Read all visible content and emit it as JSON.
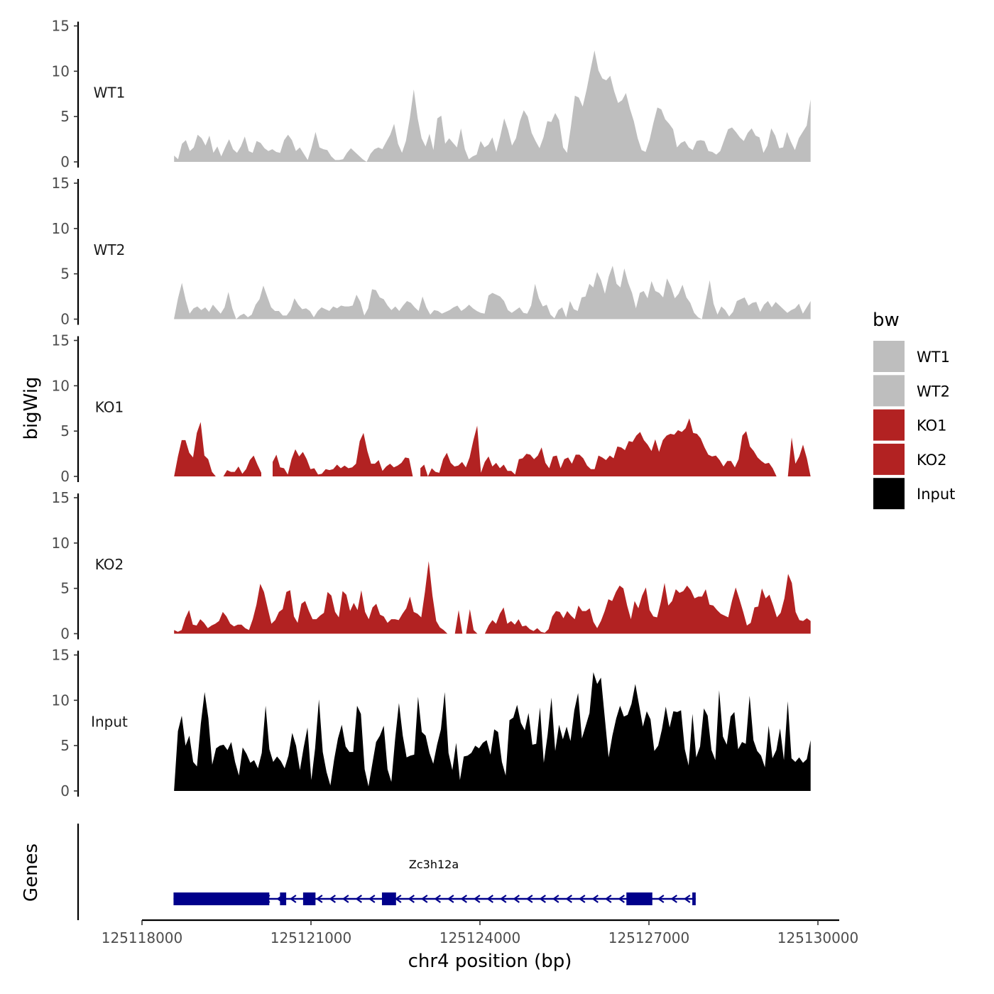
{
  "chart_data": {
    "type": "area",
    "title": "",
    "ylabel": "bigWig",
    "xlabel": "chr4 position (bp)",
    "ylim": [
      0,
      15
    ],
    "yticks": [
      0,
      5,
      10,
      15
    ],
    "xlim": [
      125118000,
      125130000
    ],
    "xticks": [
      125118000,
      125121000,
      125124000,
      125127000,
      125130000
    ],
    "xtick_labels": [
      "125118000",
      "125121000",
      "125124000",
      "125127000",
      "125130000"
    ],
    "x_start": 125118570,
    "x_end": 125129870,
    "legend": {
      "title": "bw",
      "position": "right",
      "entries": [
        {
          "name": "WT1",
          "color": "#bebebe"
        },
        {
          "name": "WT2",
          "color": "#bebebe"
        },
        {
          "name": "KO1",
          "color": "#b22222"
        },
        {
          "name": "KO2",
          "color": "#b22222"
        },
        {
          "name": "Input",
          "color": "#000000"
        }
      ]
    },
    "series": [
      {
        "name": "WT1",
        "color": "#bebebe",
        "values": [
          0.7,
          0.3,
          2.0,
          2.4,
          1.2,
          1.6,
          3.0,
          2.6,
          1.8,
          2.9,
          1.0,
          1.7,
          0.6,
          1.6,
          2.5,
          1.4,
          1.0,
          1.7,
          2.8,
          1.2,
          1.0,
          2.3,
          2.1,
          1.5,
          1.2,
          1.4,
          1.1,
          1.0,
          2.4,
          3.0,
          2.4,
          1.2,
          1.6,
          0.9,
          0.2,
          1.6,
          3.3,
          1.6,
          1.4,
          1.3,
          0.6,
          0.2,
          0.2,
          0.3,
          1.0,
          1.5,
          1.1,
          0.7,
          0.3,
          0.0,
          0.9,
          1.4,
          1.6,
          1.4,
          2.2,
          3.0,
          4.2,
          2.0,
          1.0,
          2.3,
          4.8,
          8.0,
          4.8,
          2.6,
          1.7,
          3.1,
          1.3,
          4.8,
          5.1,
          2.0,
          2.6,
          2.1,
          1.6,
          3.7,
          1.4,
          0.3,
          0.6,
          0.8,
          2.3,
          1.6,
          1.9,
          2.7,
          1.1,
          2.8,
          4.8,
          3.5,
          1.8,
          2.6,
          4.5,
          5.7,
          5.0,
          3.2,
          2.3,
          1.5,
          2.7,
          4.5,
          4.4,
          5.4,
          4.6,
          1.6,
          1.0,
          3.9,
          7.3,
          7.1,
          6.1,
          8.0,
          10.2,
          12.3,
          10.1,
          9.2,
          9.0,
          9.5,
          7.8,
          6.5,
          6.8,
          7.6,
          5.9,
          4.5,
          2.6,
          1.3,
          1.1,
          2.4,
          4.3,
          6.0,
          5.8,
          4.7,
          4.2,
          3.6,
          1.6,
          2.1,
          2.3,
          1.6,
          1.3,
          2.3,
          2.4,
          2.3,
          1.2,
          1.1,
          0.8,
          1.2,
          2.4,
          3.6,
          3.8,
          3.3,
          2.7,
          2.3,
          3.2,
          3.7,
          2.9,
          2.7,
          1.0,
          1.8,
          3.7,
          2.9,
          1.5,
          1.6,
          3.3,
          2.2,
          1.3,
          2.6,
          3.3,
          4.0,
          6.9
        ]
      },
      {
        "name": "WT2",
        "color": "#bebebe",
        "values": [
          0.1,
          2.3,
          4.0,
          2.1,
          0.6,
          1.2,
          1.4,
          1.0,
          1.3,
          0.8,
          1.6,
          1.1,
          0.6,
          1.3,
          3.0,
          1.2,
          0.0,
          0.4,
          0.6,
          0.2,
          0.5,
          1.6,
          2.2,
          3.7,
          2.5,
          1.3,
          0.9,
          0.9,
          0.4,
          0.4,
          1.0,
          2.3,
          1.6,
          1.1,
          1.2,
          0.9,
          0.2,
          0.9,
          1.3,
          1.1,
          0.9,
          1.4,
          1.2,
          1.5,
          1.4,
          1.4,
          1.5,
          2.7,
          1.9,
          0.4,
          1.2,
          3.3,
          3.2,
          2.4,
          2.2,
          1.5,
          1.0,
          1.4,
          0.9,
          1.5,
          2.0,
          1.8,
          1.3,
          0.9,
          2.5,
          1.3,
          0.5,
          1.0,
          0.9,
          0.6,
          0.8,
          1.0,
          1.3,
          1.5,
          0.9,
          1.2,
          1.6,
          1.2,
          0.9,
          0.7,
          0.6,
          2.6,
          2.9,
          2.7,
          2.5,
          2.0,
          1.0,
          0.7,
          1.0,
          1.3,
          0.7,
          0.6,
          1.5,
          3.9,
          2.3,
          1.4,
          1.6,
          0.5,
          0.1,
          1.0,
          1.3,
          0.2,
          2.0,
          1.1,
          0.9,
          2.4,
          2.5,
          3.9,
          3.5,
          5.2,
          4.3,
          2.8,
          4.7,
          5.9,
          3.9,
          3.5,
          5.6,
          4.0,
          2.9,
          1.2,
          2.9,
          3.1,
          2.3,
          4.2,
          3.1,
          2.9,
          2.4,
          4.5,
          3.6,
          2.3,
          2.8,
          3.8,
          2.4,
          1.8,
          0.7,
          0.2,
          0.0,
          2.1,
          4.3,
          1.7,
          0.5,
          1.4,
          1.0,
          0.3,
          0.8,
          2.0,
          2.2,
          2.4,
          1.5,
          1.8,
          1.9,
          0.8,
          1.6,
          2.0,
          1.3,
          1.9,
          1.5,
          1.1,
          0.7,
          1.0,
          1.2,
          1.7,
          0.6,
          1.3,
          2.0
        ]
      },
      {
        "name": "KO1",
        "color": "#b22222",
        "values": [
          0.0,
          2.2,
          4.0,
          4.0,
          2.6,
          2.1,
          4.8,
          6.0,
          2.3,
          1.9,
          0.5,
          0.0,
          null,
          0.0,
          0.7,
          0.5,
          0.5,
          1.1,
          0.3,
          0.8,
          1.8,
          2.3,
          1.3,
          0.4,
          null,
          null,
          1.6,
          2.4,
          1.0,
          0.9,
          0.2,
          1.9,
          3.0,
          2.2,
          2.7,
          1.9,
          0.8,
          0.9,
          0.2,
          0.3,
          0.8,
          0.7,
          0.8,
          1.3,
          0.9,
          1.2,
          0.9,
          1.0,
          1.4,
          3.9,
          4.8,
          2.8,
          1.4,
          1.4,
          1.8,
          0.6,
          1.1,
          1.4,
          1.0,
          1.2,
          1.5,
          2.1,
          2.0,
          0.0,
          null,
          0.9,
          1.3,
          0.0,
          0.9,
          0.5,
          0.4,
          1.9,
          2.6,
          1.5,
          1.1,
          1.2,
          1.6,
          1.0,
          2.1,
          4.0,
          5.6,
          0.4,
          1.6,
          2.2,
          1.1,
          1.5,
          0.9,
          1.3,
          0.6,
          0.6,
          0.2,
          1.9,
          2.0,
          2.5,
          2.4,
          1.9,
          2.3,
          3.2,
          1.5,
          0.9,
          2.2,
          2.3,
          0.9,
          1.9,
          2.1,
          1.4,
          2.4,
          2.4,
          2.0,
          1.2,
          0.8,
          0.8,
          2.3,
          2.1,
          1.8,
          2.3,
          2.0,
          3.3,
          3.2,
          2.9,
          3.9,
          3.8,
          4.5,
          4.9,
          4.0,
          3.5,
          2.8,
          4.1,
          2.7,
          4.0,
          4.5,
          4.7,
          4.6,
          5.1,
          4.9,
          5.3,
          6.4,
          4.8,
          4.7,
          4.2,
          3.2,
          2.4,
          2.2,
          2.3,
          1.8,
          1.1,
          1.7,
          1.7,
          1.0,
          1.9,
          4.5,
          5.0,
          3.3,
          2.8,
          2.1,
          1.7,
          1.4,
          1.5,
          0.9,
          0.0,
          null,
          null,
          0.0,
          4.3,
          1.4,
          2.2,
          3.5,
          2.0,
          0.0
        ]
      },
      {
        "name": "KO2",
        "color": "#b22222",
        "values": [
          0.4,
          0.2,
          0.4,
          1.7,
          2.6,
          1.0,
          0.9,
          1.6,
          1.2,
          0.6,
          0.9,
          1.1,
          1.4,
          2.4,
          1.9,
          1.1,
          0.8,
          1.0,
          1.0,
          0.6,
          0.4,
          1.6,
          3.2,
          5.5,
          4.6,
          2.8,
          1.1,
          1.5,
          2.4,
          2.7,
          4.6,
          4.8,
          1.9,
          1.2,
          3.3,
          3.6,
          2.5,
          1.6,
          1.6,
          2.0,
          2.3,
          4.6,
          4.2,
          2.4,
          1.8,
          4.7,
          4.3,
          2.5,
          3.4,
          2.6,
          4.8,
          2.4,
          1.6,
          2.9,
          3.3,
          2.1,
          1.9,
          1.2,
          1.6,
          1.6,
          1.5,
          2.2,
          2.8,
          4.1,
          2.4,
          2.2,
          1.8,
          4.6,
          8.0,
          4.2,
          1.4,
          0.7,
          0.4,
          0.0,
          null,
          0.0,
          2.6,
          0.0,
          0.0,
          2.7,
          0.4,
          0.0,
          null,
          0.0,
          0.9,
          1.5,
          1.1,
          2.2,
          2.9,
          1.1,
          1.4,
          1.0,
          1.6,
          0.8,
          0.9,
          0.5,
          0.3,
          0.6,
          0.2,
          0.1,
          0.5,
          1.9,
          2.5,
          2.4,
          1.7,
          2.5,
          2.0,
          1.6,
          3.1,
          2.5,
          2.5,
          2.8,
          1.3,
          0.6,
          1.4,
          2.5,
          3.8,
          3.6,
          4.6,
          5.3,
          5.0,
          3.1,
          1.6,
          3.6,
          2.8,
          4.2,
          5.1,
          2.6,
          1.9,
          1.8,
          3.5,
          5.6,
          3.1,
          3.6,
          4.9,
          4.5,
          4.7,
          5.3,
          4.8,
          3.9,
          4.1,
          4.1,
          4.9,
          3.2,
          3.1,
          2.6,
          2.2,
          2.0,
          1.8,
          3.6,
          5.1,
          3.8,
          2.4,
          0.9,
          1.2,
          2.9,
          3.0,
          5.0,
          3.9,
          4.3,
          3.1,
          1.8,
          2.3,
          3.9,
          6.6,
          5.6,
          2.4,
          1.5,
          1.4,
          1.7,
          1.4
        ]
      },
      {
        "name": "Input",
        "color": "#000000",
        "values": [
          0.1,
          6.6,
          8.3,
          5.0,
          6.1,
          3.2,
          2.7,
          7.4,
          10.9,
          8.0,
          2.9,
          4.7,
          5.0,
          5.1,
          4.5,
          5.4,
          3.2,
          1.7,
          4.8,
          4.1,
          3.1,
          3.4,
          2.5,
          4.2,
          9.4,
          4.6,
          3.2,
          3.8,
          3.3,
          2.5,
          3.9,
          6.4,
          5.0,
          2.3,
          4.8,
          7.0,
          1.2,
          4.7,
          10.1,
          4.3,
          2.1,
          0.6,
          3.5,
          5.8,
          7.3,
          4.9,
          4.3,
          4.3,
          9.4,
          8.5,
          2.4,
          0.5,
          3.0,
          5.4,
          6.1,
          7.2,
          2.4,
          1.0,
          5.8,
          9.7,
          6.1,
          3.7,
          3.9,
          4.0,
          10.4,
          6.5,
          6.1,
          4.2,
          3.0,
          5.1,
          6.8,
          10.9,
          4.2,
          2.3,
          5.3,
          1.2,
          3.8,
          3.9,
          4.2,
          5.0,
          4.7,
          5.3,
          5.6,
          4.0,
          6.8,
          6.5,
          3.2,
          1.7,
          7.8,
          8.1,
          9.5,
          7.5,
          6.7,
          8.6,
          5.1,
          5.2,
          9.2,
          3.1,
          6.2,
          10.3,
          4.4,
          7.3,
          5.7,
          7.1,
          5.5,
          8.9,
          10.8,
          5.8,
          7.2,
          8.6,
          13.1,
          11.8,
          12.5,
          8.1,
          3.7,
          6.1,
          8.0,
          9.4,
          8.2,
          8.4,
          9.6,
          11.8,
          9.5,
          7.1,
          8.8,
          7.9,
          4.4,
          5.0,
          6.8,
          9.3,
          7.0,
          8.8,
          8.7,
          8.9,
          4.6,
          2.8,
          8.5,
          3.7,
          4.9,
          9.1,
          8.3,
          4.5,
          3.4,
          11.1,
          6.0,
          5.1,
          8.2,
          8.7,
          4.6,
          5.4,
          5.2,
          10.5,
          5.6,
          4.4,
          3.9,
          2.6,
          7.2,
          3.6,
          4.5,
          6.9,
          3.4,
          9.9,
          3.6,
          3.2,
          3.7,
          3.1,
          3.5,
          5.6
        ]
      }
    ],
    "gene_track": {
      "ylabel": "Genes",
      "gene_name": "Zc3h12a",
      "strand": "-",
      "start": 125118560,
      "end": 125127830,
      "color": "#00008b",
      "exons": [
        [
          125118560,
          125120260
        ],
        [
          125120450,
          125120560
        ],
        [
          125120860,
          125121080
        ],
        [
          125122260,
          125122510
        ],
        [
          125126600,
          125127060
        ],
        [
          125127770,
          125127830
        ]
      ]
    }
  }
}
